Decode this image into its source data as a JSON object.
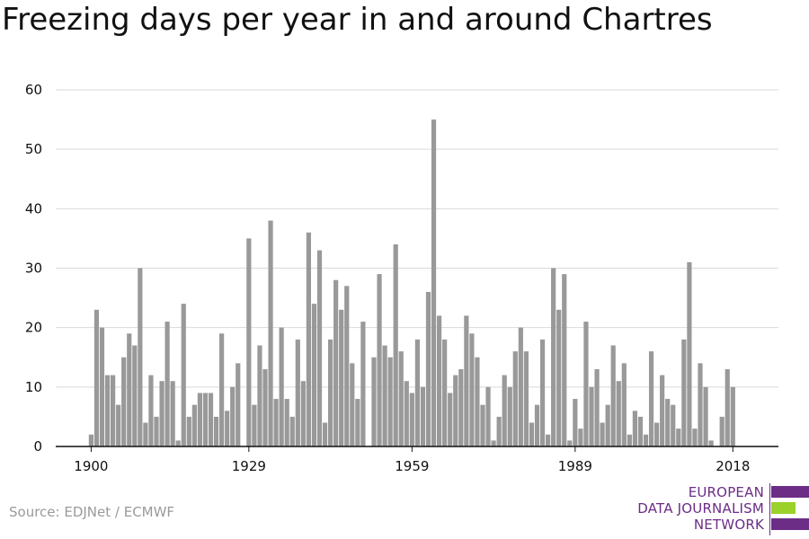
{
  "title": "Freezing days per year in and around Chartres",
  "source": "Source: EDJNet / ECMWF",
  "logo": {
    "line1": "EUROPEAN",
    "line2": "DATA JOURNALISM",
    "line3": "NETWORK",
    "colors": {
      "purple": "#6b2d86",
      "green": "#9bd12a"
    }
  },
  "colors": {
    "bar": "#999999",
    "grid": "#d9d9d9",
    "axis": "#111111",
    "text": "#111111"
  },
  "chart_data": {
    "type": "bar",
    "title": "Freezing days per year in and around Chartres",
    "xlabel": "",
    "ylabel": "",
    "ylim": [
      0,
      60
    ],
    "yticks": [
      0,
      10,
      20,
      30,
      40,
      50,
      60
    ],
    "xticks": [
      1900,
      1929,
      1959,
      1989,
      2018
    ],
    "grid": true,
    "x": [
      1900,
      1901,
      1902,
      1903,
      1904,
      1905,
      1906,
      1907,
      1908,
      1909,
      1910,
      1911,
      1912,
      1913,
      1914,
      1915,
      1916,
      1917,
      1918,
      1919,
      1920,
      1921,
      1922,
      1923,
      1924,
      1925,
      1926,
      1927,
      1928,
      1929,
      1930,
      1931,
      1932,
      1933,
      1934,
      1935,
      1936,
      1937,
      1938,
      1939,
      1940,
      1941,
      1942,
      1943,
      1944,
      1945,
      1946,
      1947,
      1948,
      1949,
      1950,
      1951,
      1952,
      1953,
      1954,
      1955,
      1956,
      1957,
      1958,
      1959,
      1960,
      1961,
      1962,
      1963,
      1964,
      1965,
      1966,
      1967,
      1968,
      1969,
      1970,
      1971,
      1972,
      1973,
      1974,
      1975,
      1976,
      1977,
      1978,
      1979,
      1980,
      1981,
      1982,
      1983,
      1984,
      1985,
      1986,
      1987,
      1988,
      1989,
      1990,
      1991,
      1992,
      1993,
      1994,
      1995,
      1996,
      1997,
      1998,
      1999,
      2000,
      2001,
      2002,
      2003,
      2004,
      2005,
      2006,
      2007,
      2008,
      2009,
      2010,
      2011,
      2012,
      2013,
      2014,
      2015,
      2016,
      2017,
      2018
    ],
    "values": [
      2,
      23,
      20,
      12,
      12,
      7,
      15,
      19,
      17,
      30,
      4,
      12,
      5,
      11,
      21,
      11,
      1,
      24,
      5,
      7,
      9,
      9,
      9,
      5,
      19,
      6,
      10,
      14,
      0,
      35,
      7,
      17,
      13,
      38,
      8,
      20,
      8,
      5,
      18,
      11,
      36,
      24,
      33,
      4,
      18,
      28,
      23,
      27,
      14,
      8,
      21,
      0,
      15,
      29,
      17,
      15,
      34,
      16,
      11,
      9,
      18,
      10,
      26,
      55,
      22,
      18,
      9,
      12,
      13,
      22,
      19,
      15,
      7,
      10,
      1,
      5,
      12,
      10,
      16,
      20,
      16,
      4,
      7,
      18,
      2,
      30,
      23,
      29,
      1,
      8,
      3,
      21,
      10,
      13,
      4,
      7,
      17,
      11,
      14,
      2,
      6,
      5,
      2,
      16,
      4,
      12,
      8,
      7,
      3,
      18,
      31,
      3,
      14,
      10,
      1,
      0,
      5,
      13,
      10
    ]
  }
}
